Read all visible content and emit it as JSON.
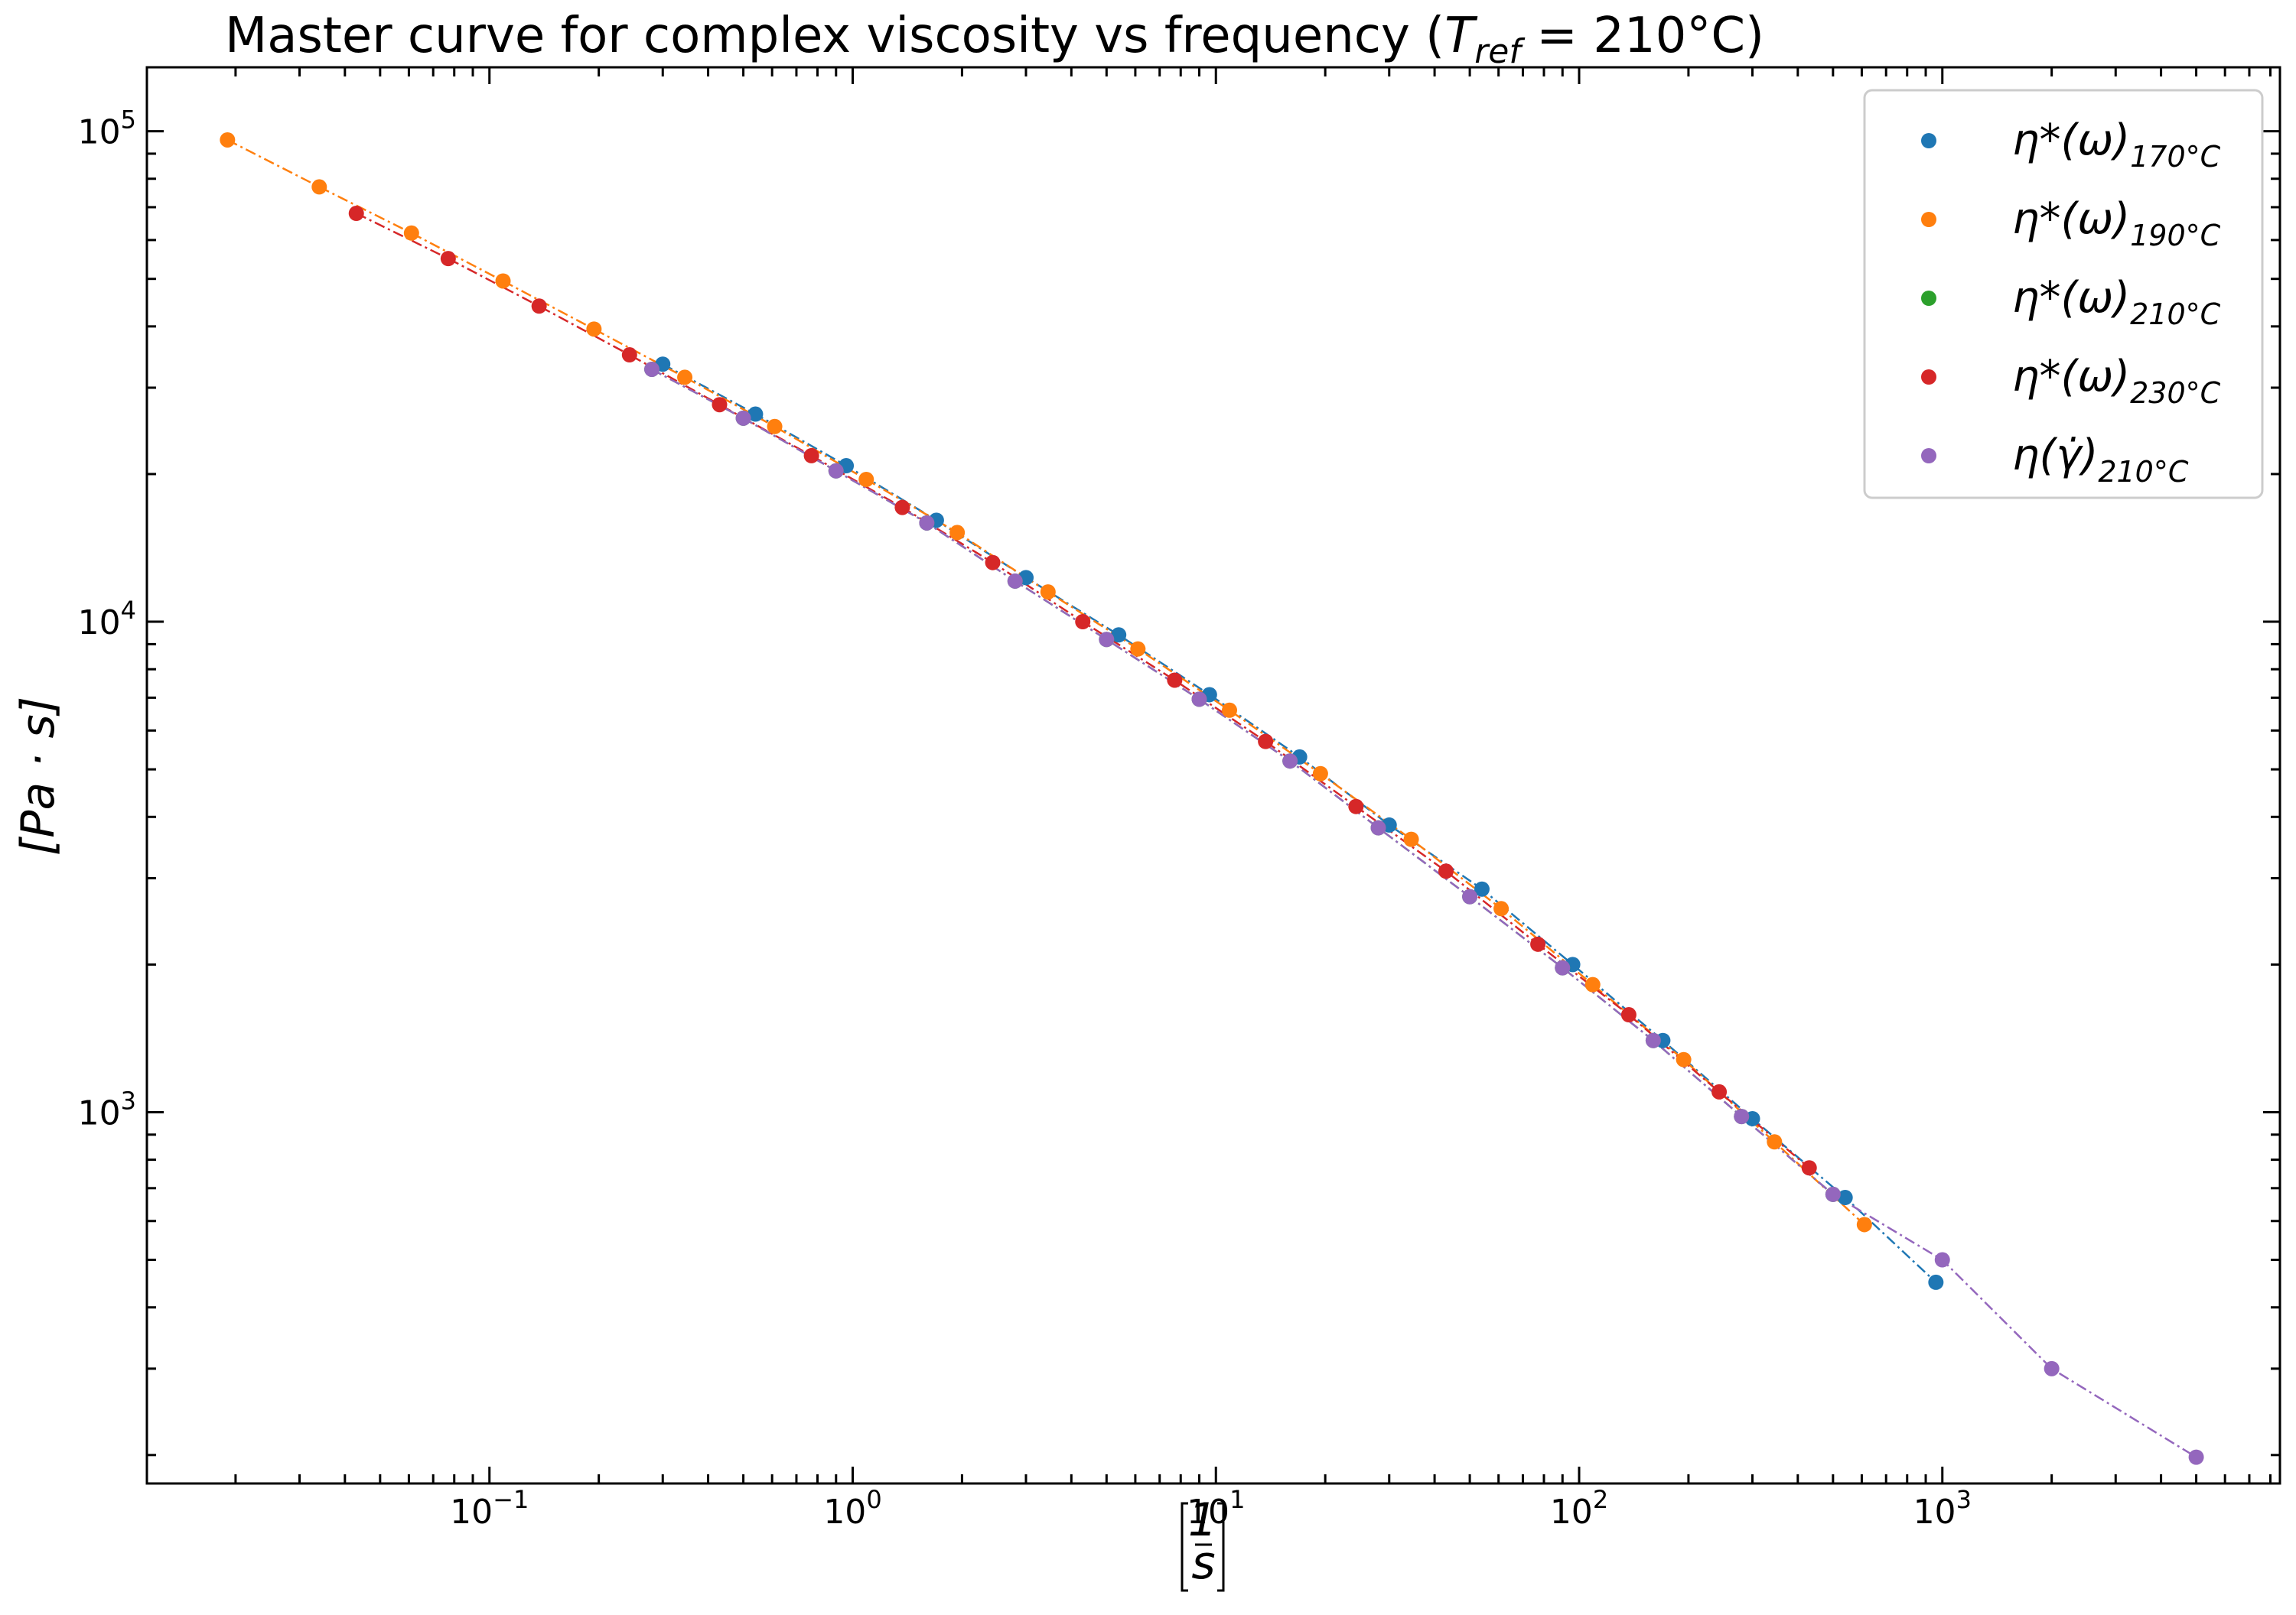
{
  "chart_data": {
    "type": "scatter",
    "title": "Master curve for complex viscosity vs frequency (T_ref = 210°C)",
    "title_parts": {
      "prefix": "Master curve for complex viscosity vs frequency (",
      "symbol": "T",
      "subscript": "ref",
      "suffix": " = 210°C)"
    },
    "xlabel": "[1/s]",
    "ylabel": "[Pa · s]",
    "xscale": "log",
    "yscale": "log",
    "xlim": [
      0.0114,
      8500
    ],
    "ylim": [
      175,
      135000
    ],
    "grid": false,
    "legend_position": "top-right",
    "x_tick_labels": [
      {
        "value": 0.1,
        "base": "10",
        "exp": "−1"
      },
      {
        "value": 1,
        "base": "10",
        "exp": "0"
      },
      {
        "value": 10,
        "base": "10",
        "exp": "1"
      },
      {
        "value": 100,
        "base": "10",
        "exp": "2"
      },
      {
        "value": 1000,
        "base": "10",
        "exp": "3"
      }
    ],
    "y_tick_labels": [
      {
        "value": 1000,
        "base": "10",
        "exp": "3"
      },
      {
        "value": 10000,
        "base": "10",
        "exp": "4"
      },
      {
        "value": 100000,
        "base": "10",
        "exp": "5"
      }
    ],
    "series": [
      {
        "name": "η*(ω)_170°C",
        "label_main": "η*(ω)",
        "label_sub": "170°C",
        "color": "#1f77b4",
        "x": [
          0.3,
          0.54,
          0.96,
          1.7,
          3.0,
          5.4,
          9.6,
          17,
          30,
          54,
          96,
          170,
          300,
          540,
          960
        ],
        "y": [
          33500,
          26500,
          20800,
          16100,
          12300,
          9400,
          7100,
          5300,
          3850,
          2850,
          2000,
          1400,
          970,
          670,
          450
        ]
      },
      {
        "name": "η*(ω)_190°C",
        "label_main": "η*(ω)",
        "label_sub": "190°C",
        "color": "#ff7f0e",
        "x": [
          0.019,
          0.034,
          0.061,
          0.109,
          0.194,
          0.345,
          0.61,
          1.09,
          1.94,
          3.45,
          6.1,
          10.9,
          19.4,
          34.5,
          61,
          109,
          194,
          345,
          610
        ],
        "y": [
          96000,
          77000,
          62000,
          49500,
          39500,
          31500,
          25000,
          19500,
          15200,
          11500,
          8800,
          6600,
          4900,
          3600,
          2600,
          1820,
          1280,
          870,
          590
        ]
      },
      {
        "name": "η*(ω)_210°C",
        "label_main": "η*(ω)",
        "label_sub": "210°C",
        "color": "#2ca02c",
        "x": [
          0.28,
          0.5,
          0.9,
          1.6,
          2.8,
          5.0,
          9.0,
          16,
          28,
          50,
          90,
          160,
          280,
          500
        ],
        "y": [
          32700,
          26000,
          20300,
          15900,
          12100,
          9200,
          6950,
          5200,
          3800,
          2750,
          1970,
          1400,
          980,
          680
        ]
      },
      {
        "name": "η*(ω)_230°C",
        "label_main": "η*(ω)",
        "label_sub": "230°C",
        "color": "#d62728",
        "x": [
          0.043,
          0.077,
          0.137,
          0.243,
          0.43,
          0.77,
          1.37,
          2.43,
          4.3,
          7.7,
          13.7,
          24.3,
          43,
          77,
          137,
          243,
          430
        ],
        "y": [
          68000,
          55000,
          44000,
          35000,
          27700,
          21800,
          17100,
          13200,
          10000,
          7600,
          5700,
          4200,
          3100,
          2200,
          1580,
          1100,
          770
        ]
      },
      {
        "name": "η(γ̇)_210°C",
        "label_main": "η(γ̇)",
        "label_sub": "210°C",
        "color": "#9467bd",
        "x": [
          0.28,
          0.5,
          0.9,
          1.6,
          2.8,
          5.0,
          9.0,
          16,
          28,
          50,
          90,
          160,
          280,
          500,
          1000,
          2000,
          5000
        ],
        "y": [
          32700,
          26000,
          20300,
          15900,
          12100,
          9200,
          6950,
          5200,
          3800,
          2750,
          1970,
          1400,
          980,
          680,
          500,
          300,
          198
        ]
      }
    ]
  }
}
